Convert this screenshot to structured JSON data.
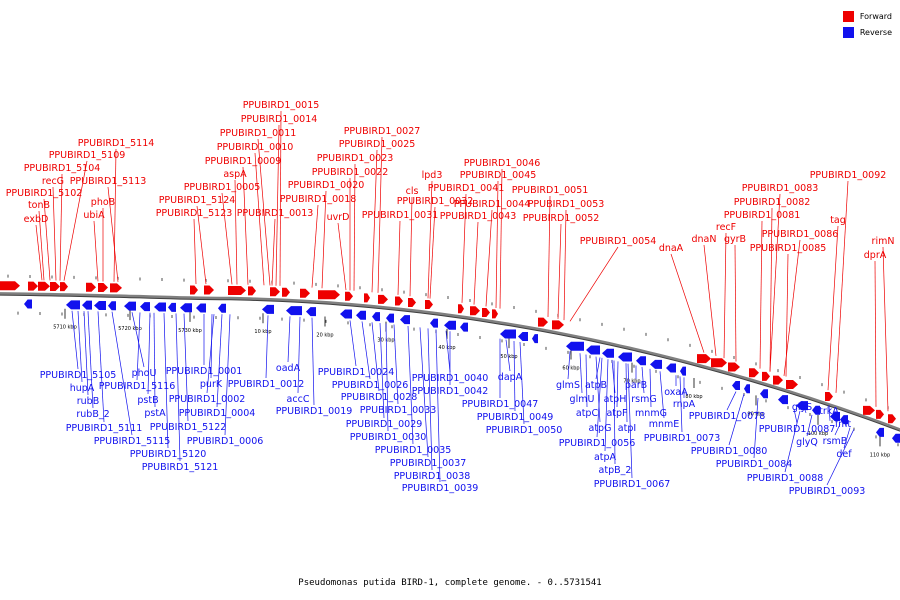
{
  "legend": {
    "forward_label": "Forward",
    "reverse_label": "Reverse",
    "forward_color": "#ee0000",
    "reverse_color": "#1111ee"
  },
  "caption": "Pseudomonas putida BIRD-1, complete genome. - 0..5731541",
  "colors": {
    "forward": "#ee0000",
    "reverse": "#1111ee",
    "backbone": "#808080"
  },
  "ticks": [
    "5710 kbp",
    "5720 kbp",
    "5730 kbp",
    "10 kbp",
    "20 kbp",
    "30 kbp",
    "40 kbp",
    "50 kbp",
    "60 kbp",
    "70 kbp",
    "80 kbp",
    "90 kbp",
    "100 kbp",
    "110 kbp"
  ],
  "forward_genes": [
    "exbD",
    "tonB",
    "PPUBIRD1_5102",
    "recG",
    "PPUBIRD1_5104",
    "PPUBIRD1_5109",
    "PPUBIRD1_5114",
    "ubiA",
    "phoB",
    "PPUBIRD1_5113",
    "PPUBIRD1_5123",
    "PPUBIRD1_5124",
    "PPUBIRD1_0005",
    "aspA",
    "PPUBIRD1_0009",
    "PPUBIRD1_0011",
    "PPUBIRD1_0010",
    "PPUBIRD1_0014",
    "PPUBIRD1_0015",
    "PPUBIRD1_0013",
    "PPUBIRD1_0018",
    "PPUBIRD1_0020",
    "PPUBIRD1_0022",
    "PPUBIRD1_0023",
    "PPUBIRD1_0025",
    "PPUBIRD1_0027",
    "uvrD",
    "PPUBIRD1_0031",
    "cls",
    "PPUBIRD1_0032",
    "lpd3",
    "PPUBIRD1_0041",
    "PPUBIRD1_0043",
    "PPUBIRD1_0044",
    "PPUBIRD1_0045",
    "PPUBIRD1_0046",
    "PPUBIRD1_0051",
    "PPUBIRD1_0052",
    "PPUBIRD1_0053",
    "PPUBIRD1_0054",
    "dnaA",
    "dnaN",
    "recF",
    "gyrB",
    "PPUBIRD1_0081",
    "PPUBIRD1_0082",
    "PPUBIRD1_0083",
    "PPUBIRD1_0085",
    "PPUBIRD1_0086",
    "tag",
    "PPUBIRD1_0092",
    "dprA",
    "rimN"
  ],
  "reverse_genes": [
    "PPUBIRD1_5105",
    "hupA",
    "rubB",
    "rubB_2",
    "PPUBIRD1_5111",
    "PPUBIRD1_5115",
    "phoU",
    "PPUBIRD1_5116",
    "pstB",
    "pstA",
    "PPUBIRD1_5120",
    "PPUBIRD1_5121",
    "PPUBIRD1_5122",
    "PPUBIRD1_0001",
    "purK",
    "PPUBIRD1_0002",
    "PPUBIRD1_0004",
    "PPUBIRD1_0006",
    "PPUBIRD1_0012",
    "oadA",
    "accC",
    "PPUBIRD1_0019",
    "PPUBIRD1_0024",
    "PPUBIRD1_0026",
    "PPUBIRD1_0028",
    "PPUBIRD1_0033",
    "PPUBIRD1_0029",
    "PPUBIRD1_0030",
    "PPUBIRD1_0035",
    "PPUBIRD1_0037",
    "PPUBIRD1_0038",
    "PPUBIRD1_0039",
    "PPUBIRD1_0040",
    "PPUBIRD1_0042",
    "dapA",
    "PPUBIRD1_0047",
    "PPUBIRD1_0049",
    "PPUBIRD1_0050",
    "glmS",
    "glmU",
    "atpC",
    "atpG",
    "PPUBIRD1_0056",
    "atpA",
    "atpB_2",
    "atpB",
    "atpH",
    "atpF",
    "atpI",
    "parB",
    "rsmG",
    "mnmG",
    "mnmE",
    "PPUBIRD1_0067",
    "oxaA",
    "rnpA",
    "PPUBIRD1_0073",
    "PPUBIRD1_0078",
    "PPUBIRD1_0080",
    "PPUBIRD1_0084",
    "PPUBIRD1_0087",
    "PPUBIRD1_0088",
    "glyS",
    "glyQ",
    "trkA",
    "rsmB",
    "fmt",
    "def",
    "PPUBIRD1_0093"
  ]
}
